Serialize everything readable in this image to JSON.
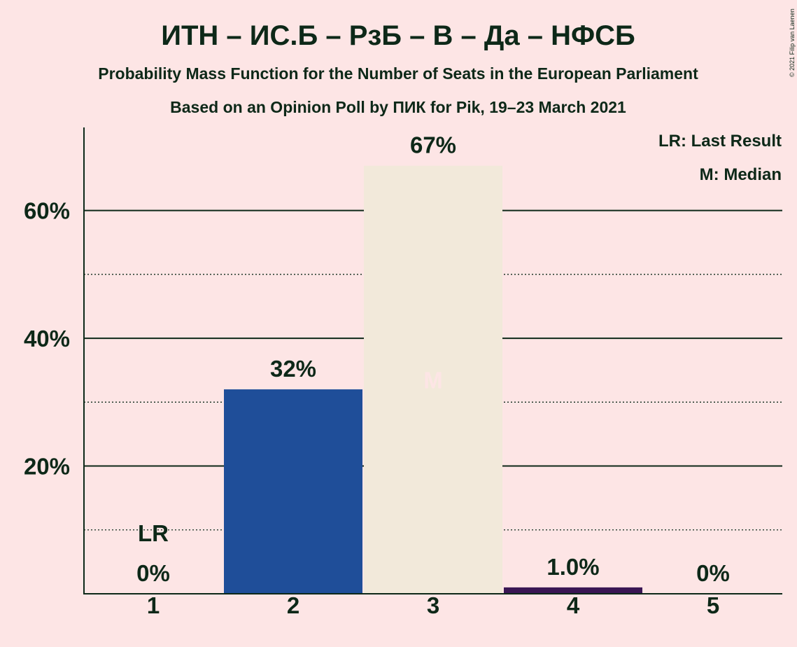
{
  "chart_data": {
    "type": "bar",
    "title": "ИТН – ИС.Б – РзБ – В – Да – НФСБ",
    "subtitle": "Probability Mass Function for the Number of Seats in the European Parliament",
    "subtitle2": "Based on an Opinion Poll by ПИК for Pik, 19–23 March 2021",
    "categories": [
      "1",
      "2",
      "3",
      "4",
      "5"
    ],
    "values": [
      0,
      32,
      67,
      1.0,
      0
    ],
    "value_labels": [
      "0%",
      "32%",
      "67%",
      "1.0%",
      "0%"
    ],
    "bar_colors": [
      "#1f4e99",
      "#1f4e99",
      "#f2e9da",
      "#3a1654",
      "#3a1654"
    ],
    "ylim": [
      0,
      73
    ],
    "y_ticks": [
      20,
      40,
      60
    ],
    "y_tick_labels": [
      "20%",
      "40%",
      "60%"
    ],
    "minor_grid": [
      10,
      30,
      50
    ],
    "last_result_index": 0,
    "last_result_marker": "LR",
    "median_index": 2,
    "median_marker": "M",
    "legend": [
      "LR: Last Result",
      "M: Median"
    ],
    "legend_position": "top-right"
  },
  "copyright": "© 2021 Filip van Laenen",
  "colors": {
    "background": "#fde5e5",
    "text": "#0d2818",
    "median_text": "#fde5e5"
  }
}
